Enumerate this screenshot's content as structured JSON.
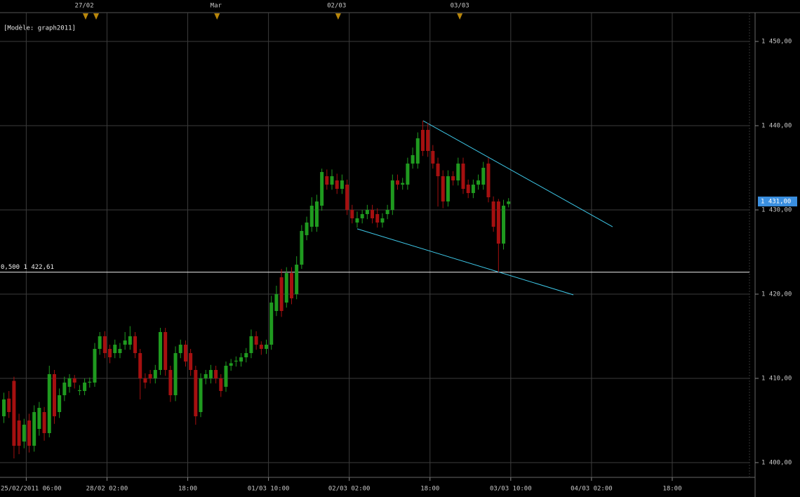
{
  "chart_data": {
    "type": "candlestick",
    "annotation": "[Modèle: graph2011]",
    "up_color": "#1f9a1f",
    "down_color": "#a51010",
    "grid": true,
    "xlim": [
      -0.7,
      147.8
    ],
    "ylim": [
      1398.25,
      1453.42
    ],
    "yticks": [
      {
        "value": 1400,
        "label": "1 400,00"
      },
      {
        "value": 1410,
        "label": "1 410,00"
      },
      {
        "value": 1420,
        "label": "1 420,00"
      },
      {
        "value": 1430,
        "label": "1 430,00"
      },
      {
        "value": 1440,
        "label": "1 440,00"
      },
      {
        "value": 1450,
        "label": "1 450,00"
      }
    ],
    "xticks": [
      {
        "value": 4.5,
        "label": "25/02/2011 06:00"
      },
      {
        "value": 20.5,
        "label": "28/02 02:00"
      },
      {
        "value": 36.5,
        "label": "18:00"
      },
      {
        "value": 52.5,
        "label": "01/03 10:00"
      },
      {
        "value": 68.5,
        "label": "02/03 02:00"
      },
      {
        "value": 84.5,
        "label": "18:00"
      },
      {
        "value": 100.5,
        "label": "03/03 10:00"
      },
      {
        "value": 116.5,
        "label": "04/03 02:00"
      },
      {
        "value": 132.5,
        "label": "18:00"
      }
    ],
    "event_markers": [
      16.26,
      18.35,
      42.3,
      66.3,
      90.4
    ],
    "event_labels": [
      {
        "value": 16.0,
        "label": "27/02"
      },
      {
        "value": 42.1,
        "label": "Mar"
      },
      {
        "value": 66.0,
        "label": "02/03"
      },
      {
        "value": 90.4,
        "label": "03/03"
      }
    ],
    "level": {
      "value": 1422.61,
      "label": "0,500 1 422,61"
    },
    "last_price": {
      "value": 1431,
      "label": "1 431,00"
    },
    "trendlines": [
      {
        "x": [
          83.14,
          120.68
        ],
        "y": [
          1440.58,
          1428.0
        ]
      },
      {
        "x": [
          70.07,
          112.9
        ],
        "y": [
          1427.75,
          1419.92
        ]
      }
    ],
    "open": [
      1405.5,
      1407.6,
      1409.7,
      1405,
      1402.5,
      1405,
      1402,
      1404,
      1406,
      1403.5,
      1410.5,
      1406,
      1408,
      1409,
      1410,
      1408.5,
      1408.5,
      1409.5,
      1409.5,
      1413.5,
      1415,
      1413.5,
      1413,
      1413,
      1414,
      1414,
      1415,
      1413,
      1410,
      1410.5,
      1410,
      1411,
      1415.5,
      1411,
      1408,
      1413,
      1414,
      1413,
      1411,
      1406,
      1410,
      1410,
      1411,
      1410,
      1409,
      1411.5,
      1412,
      1412,
      1412.5,
      1413,
      1415,
      1414,
      1413.5,
      1414,
      1418,
      1422,
      1419,
      1422.5,
      1420,
      1423.5,
      1427,
      1428,
      1428,
      1430.5,
      1434,
      1433,
      1433.5,
      1432.5,
      1433,
      1430,
      1428.5,
      1429,
      1429.5,
      1430,
      1429.5,
      1428.5,
      1429.5,
      1430,
      1433.5,
      1433,
      1433,
      1435.5,
      1435.5,
      1439.5,
      1439.5,
      1437,
      1435.5,
      1434,
      1431,
      1434,
      1433.5,
      1435.5,
      1433,
      1432,
      1433,
      1433,
      1435.5,
      1431,
      1431,
      1426,
      1430.7
    ],
    "high": [
      1408.3,
      1408.5,
      1410.2,
      1405.8,
      1405.2,
      1405.8,
      1406.8,
      1407.2,
      1406.6,
      1411.5,
      1411,
      1408.8,
      1410.2,
      1410.5,
      1410.4,
      1409.2,
      1410,
      1410.1,
      1414.2,
      1415.5,
      1415.6,
      1414,
      1414.6,
      1414.2,
      1415.5,
      1416.2,
      1415.5,
      1413.5,
      1410.6,
      1411,
      1411.6,
      1416,
      1416,
      1411.5,
      1413.8,
      1414.6,
      1414.5,
      1413.5,
      1411.5,
      1410.6,
      1411,
      1411.6,
      1411.5,
      1410.5,
      1412,
      1412.3,
      1412.6,
      1413,
      1413.6,
      1415.8,
      1415.6,
      1414.4,
      1414.6,
      1419.8,
      1421,
      1423,
      1423.2,
      1423.2,
      1424.5,
      1428.2,
      1429.2,
      1431.5,
      1431.8,
      1434.9,
      1434.8,
      1434.8,
      1434.3,
      1434.2,
      1433.6,
      1430.6,
      1429.8,
      1430,
      1430.6,
      1430.6,
      1430.2,
      1429.6,
      1430.6,
      1434.2,
      1434.2,
      1433.8,
      1436.2,
      1437.4,
      1439.2,
      1440.6,
      1440.3,
      1437.7,
      1436.2,
      1434.7,
      1434.7,
      1434.6,
      1436.2,
      1436.2,
      1433.6,
      1433.6,
      1434.2,
      1435.7,
      1436.2,
      1431.6,
      1431.3,
      1431.2,
      1431.4
    ],
    "low": [
      1404.7,
      1405.3,
      1400.5,
      1401,
      1401.7,
      1401.2,
      1401.3,
      1403.2,
      1402.6,
      1403,
      1404.6,
      1405.3,
      1407.3,
      1408.3,
      1408.8,
      1408,
      1408,
      1408.9,
      1409,
      1412.8,
      1412.4,
      1411.8,
      1412.4,
      1412.4,
      1413.4,
      1413.4,
      1412.4,
      1407.5,
      1408.8,
      1409.4,
      1409.4,
      1410.4,
      1410.3,
      1407.2,
      1407.3,
      1412.4,
      1411.4,
      1410.3,
      1404.5,
      1405.4,
      1409.3,
      1409.4,
      1409.4,
      1407.8,
      1408.4,
      1410.9,
      1411.4,
      1411.4,
      1411.9,
      1412.4,
      1413.4,
      1412.8,
      1412.9,
      1413.4,
      1417.4,
      1417.3,
      1418.4,
      1418.8,
      1419.4,
      1423,
      1426.4,
      1427.4,
      1427.4,
      1429.9,
      1432.4,
      1432.4,
      1431.9,
      1431.9,
      1429.4,
      1428.4,
      1427.9,
      1428.4,
      1428.9,
      1428.4,
      1427.9,
      1427.9,
      1428.9,
      1429.4,
      1432.4,
      1432.4,
      1432.4,
      1434.9,
      1434.9,
      1436.4,
      1436.3,
      1434.9,
      1430.4,
      1430.2,
      1430.4,
      1432.9,
      1432.9,
      1431.9,
      1431.4,
      1431.4,
      1432.4,
      1432.4,
      1430.9,
      1427.4,
      1422.6,
      1425.3,
      1430.3
    ],
    "close": [
      1407.5,
      1406,
      1402,
      1402,
      1404.5,
      1402,
      1406,
      1406.5,
      1403.5,
      1410.5,
      1405.5,
      1408,
      1409.5,
      1410,
      1409.5,
      1408.6,
      1409.5,
      1409.6,
      1413.5,
      1415,
      1413,
      1412.5,
      1414,
      1413.5,
      1414.5,
      1415,
      1413,
      1410,
      1409.5,
      1410,
      1411,
      1415.5,
      1411,
      1408,
      1413,
      1414,
      1412,
      1411,
      1405.5,
      1410,
      1410.5,
      1411,
      1410,
      1408.5,
      1411.5,
      1411.8,
      1412.1,
      1412.5,
      1413,
      1415,
      1414,
      1413.5,
      1414,
      1419,
      1420,
      1418,
      1422.5,
      1419.5,
      1423.5,
      1427.5,
      1428.5,
      1430.5,
      1431,
      1434.5,
      1433,
      1434,
      1432.5,
      1433.5,
      1430,
      1429,
      1429,
      1429.5,
      1430,
      1429,
      1428.5,
      1429,
      1430,
      1433.5,
      1433,
      1433.2,
      1435.5,
      1436.5,
      1438.5,
      1437,
      1437,
      1435.5,
      1434,
      1431,
      1434,
      1433.5,
      1435.5,
      1432.5,
      1432,
      1433,
      1433.5,
      1435,
      1431.5,
      1428,
      1426,
      1430.5,
      1431
    ]
  }
}
